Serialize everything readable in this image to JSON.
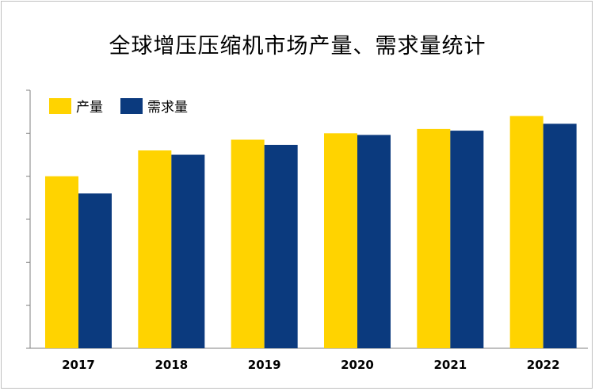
{
  "chart_data": {
    "type": "bar",
    "title": "全球增压压缩机市场产量、需求量统计",
    "categories": [
      "2017",
      "2018",
      "2019",
      "2020",
      "2021",
      "2022"
    ],
    "series": [
      {
        "name": "产量",
        "color": "#FFD300",
        "values": [
          4.0,
          4.6,
          4.85,
          5.0,
          5.1,
          5.4
        ]
      },
      {
        "name": "需求量",
        "color": "#0B3A7E",
        "values": [
          3.6,
          4.5,
          4.73,
          4.96,
          5.06,
          5.22
        ]
      }
    ],
    "ylim": [
      0,
      6
    ],
    "grid": false,
    "legend": "top-left",
    "y_ticks_labeled": false
  }
}
